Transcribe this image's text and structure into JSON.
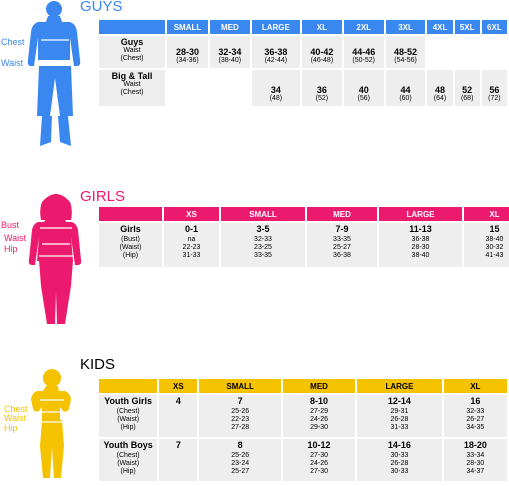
{
  "colors": {
    "guys": "#3a87ef",
    "girls": "#ec1a6e",
    "kids": "#f5c200",
    "cell": "#eeeeee"
  },
  "guys": {
    "title": "GUYS",
    "body_labels": [
      "Chest",
      "Waist"
    ],
    "headers": [
      "SMALL",
      "MED",
      "LARGE",
      "XL",
      "2XL",
      "3XL",
      "4XL",
      "5XL",
      "6XL"
    ],
    "rows": [
      {
        "name": "Guys",
        "subs": [
          "Waist",
          "(Chest)"
        ],
        "cells": [
          [
            "28-30",
            "(34-36)"
          ],
          [
            "32-34",
            "(38-40)"
          ],
          [
            "36-38",
            "(42-44)"
          ],
          [
            "40-42",
            "(46-48)"
          ],
          [
            "44-46",
            "(50-52)"
          ],
          [
            "48-52",
            "(54-56)"
          ],
          null,
          null,
          null
        ]
      },
      {
        "name": "Big & Tall",
        "subs": [
          "Waist",
          "(Chest)"
        ],
        "cells": [
          null,
          null,
          [
            "34",
            "(48)"
          ],
          [
            "36",
            "(52)"
          ],
          [
            "40",
            "(56)"
          ],
          [
            "44",
            "(60)"
          ],
          [
            "48",
            "(64)"
          ],
          [
            "52",
            "(68)"
          ],
          [
            "56",
            "(72)"
          ]
        ]
      }
    ]
  },
  "girls": {
    "title": "GIRLS",
    "body_labels": [
      "Bust",
      "Waist",
      "Hip"
    ],
    "headers": [
      "XS",
      "SMALL",
      "MED",
      "LARGE",
      "XL"
    ],
    "rows": [
      {
        "name": "Girls",
        "subs": [
          "(Bust)",
          "(Waist)",
          "(Hip)"
        ],
        "cells": [
          [
            "0-1",
            "na",
            "22-23",
            "31-33"
          ],
          [
            "3-5",
            "32-33",
            "23-25",
            "33-35"
          ],
          [
            "7-9",
            "33-35",
            "25-27",
            "36-38"
          ],
          [
            "11-13",
            "36-38",
            "28-30",
            "38-40"
          ],
          [
            "15",
            "38-40",
            "30-32",
            "41-43"
          ]
        ]
      }
    ]
  },
  "kids": {
    "title": "KIDS",
    "body_labels": [
      "Chest",
      "Waist",
      "Hip"
    ],
    "headers": [
      "XS",
      "SMALL",
      "MED",
      "LARGE",
      "XL"
    ],
    "rows": [
      {
        "name": "Youth Girls",
        "subs": [
          "(Chest)",
          "(Waist)",
          "(Hip)"
        ],
        "cells": [
          [
            "4"
          ],
          [
            "7",
            "25-26",
            "22-23",
            "27-28"
          ],
          [
            "8-10",
            "27-29",
            "24-26",
            "29-30"
          ],
          [
            "12-14",
            "29-31",
            "26-28",
            "31-33"
          ],
          [
            "16",
            "32-33",
            "26-27",
            "34-35"
          ]
        ]
      },
      {
        "name": "Youth Boys",
        "subs": [
          "(Chest)",
          "(Waist)",
          "(Hip)"
        ],
        "cells": [
          [
            "7"
          ],
          [
            "8",
            "25-26",
            "23-24",
            "25-27"
          ],
          [
            "10-12",
            "27-30",
            "24-26",
            "27-30"
          ],
          [
            "14-16",
            "30-33",
            "26-28",
            "30-33"
          ],
          [
            "18-20",
            "33-34",
            "28-30",
            "34-37"
          ]
        ]
      }
    ]
  }
}
